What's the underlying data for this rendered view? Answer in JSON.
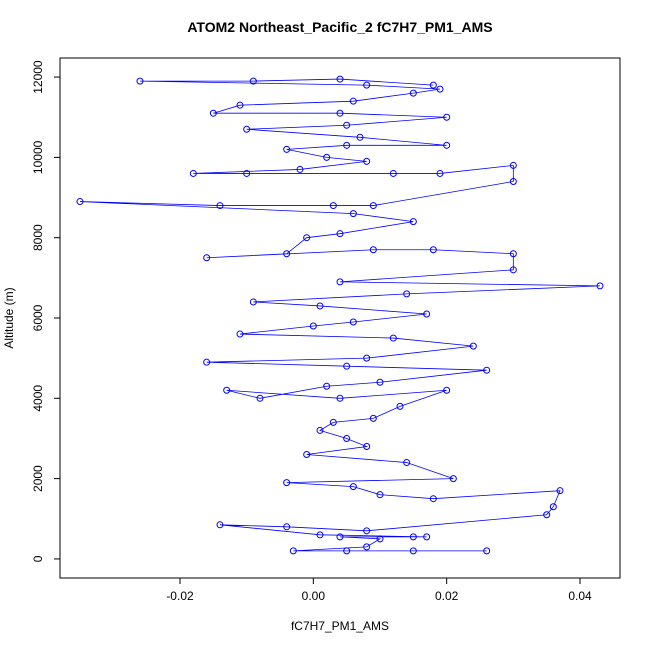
{
  "chart_data": {
    "type": "line",
    "title": "ATOM2 Northeast_Pacific_2 fC7H7_PM1_AMS",
    "x_label": "fC7H7_PM1_AMS",
    "y_label": "Altitude (m)",
    "color": "#0000ff",
    "marker": "open-circle",
    "xlim": [
      -0.038,
      0.046
    ],
    "ylim": [
      -475,
      12475
    ],
    "xticks": [
      -0.02,
      {
        "value": 0,
        "label": "0.00"
      },
      0.02,
      0.04
    ],
    "yticks": [
      0,
      2000,
      4000,
      6000,
      8000,
      10000,
      12000
    ],
    "x": [
      0.026,
      0.015,
      0.005,
      -0.003,
      0.008,
      0.01,
      0.004,
      0.015,
      0.017,
      0.001,
      -0.014,
      -0.004,
      0.008,
      0.035,
      0.036,
      0.037,
      0.018,
      0.01,
      0.006,
      -0.004,
      0.021,
      0.014,
      -0.001,
      0.008,
      0.005,
      0.001,
      0.003,
      0.009,
      0.013,
      0.02,
      0.004,
      -0.013,
      -0.008,
      0.002,
      0.01,
      0.026,
      0.005,
      -0.016,
      0.008,
      0.024,
      0.012,
      -0.011,
      0.0,
      0.006,
      0.017,
      0.001,
      -0.009,
      0.014,
      0.043,
      0.004,
      0.03,
      0.03,
      0.018,
      0.009,
      -0.016,
      -0.004,
      -0.001,
      0.004,
      0.015,
      0.006,
      -0.035,
      -0.014,
      0.003,
      0.009,
      0.03,
      0.03,
      0.019,
      0.012,
      -0.01,
      -0.018,
      -0.002,
      0.008,
      0.002,
      -0.004,
      0.005,
      0.02,
      0.007,
      -0.01,
      0.005,
      0.02,
      0.004,
      -0.015,
      -0.011,
      0.006,
      0.015,
      0.019,
      0.008,
      -0.026,
      -0.009,
      0.004,
      0.018
    ],
    "values": [
      200,
      200,
      200,
      200,
      300,
      500,
      550,
      550,
      550,
      600,
      850,
      800,
      700,
      1100,
      1300,
      1700,
      1500,
      1600,
      1800,
      1900,
      2000,
      2400,
      2600,
      2800,
      3000,
      3200,
      3400,
      3500,
      3800,
      4200,
      4000,
      4200,
      4000,
      4300,
      4400,
      4700,
      4800,
      4900,
      5000,
      5300,
      5500,
      5600,
      5800,
      5900,
      6100,
      6300,
      6400,
      6600,
      6800,
      6900,
      7200,
      7600,
      7700,
      7700,
      7500,
      7600,
      8000,
      8100,
      8400,
      8600,
      8900,
      8800,
      8800,
      8800,
      9400,
      9800,
      9600,
      9600,
      9600,
      9600,
      9700,
      9900,
      10000,
      10200,
      10300,
      10300,
      10500,
      10700,
      10800,
      11000,
      11100,
      11100,
      11300,
      11400,
      11600,
      11700,
      11800,
      11900,
      11900,
      11950,
      11800
    ]
  }
}
